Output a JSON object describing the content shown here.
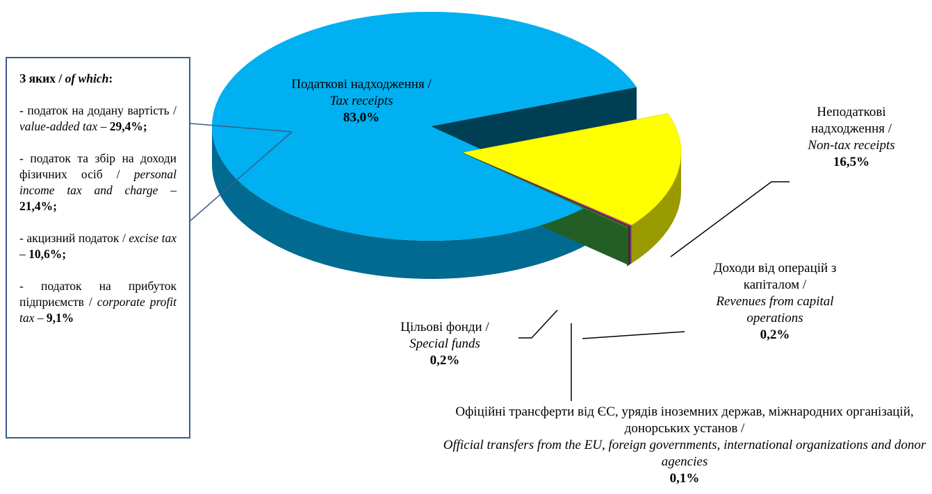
{
  "chart_data": {
    "type": "pie",
    "categories": [
      {
        "uk": "Податкові надходження /",
        "en": "Tax receipts"
      },
      {
        "uk": "Неподаткові надходження /",
        "en": "Non-tax receipts"
      },
      {
        "uk": "Доходи від операцій з капіталом /",
        "en": "Revenues from capital operations"
      },
      {
        "uk": "Офіційні трансферти від ЄС, урядів іноземних держав, міжнародних організацій, донорських установ /",
        "en": "Official transfers from the EU, foreign governments, international organizations and donor agencies"
      },
      {
        "uk": "Цільові фонди /",
        "en": "Special funds"
      }
    ],
    "values": [
      83.0,
      16.5,
      0.2,
      0.1,
      0.2
    ],
    "value_labels": [
      "83,0%",
      "16,5%",
      "0,2%",
      "0,1%",
      "0,2%"
    ],
    "colors": [
      "#00b0f0",
      "#ffff00",
      "#a040a0",
      "#8b0000",
      "#2e7d32"
    ],
    "box": {
      "title_uk": "З яких /",
      "title_en": "of which",
      "title_end": ":",
      "items": [
        {
          "uk": "- податок на додану вартість /",
          "en": "value-added tax",
          "dash": "–",
          "value": 29.4,
          "value_label": "29,4%",
          "end": ";"
        },
        {
          "uk": "- податок та збір на доходи фізичних осіб /",
          "en": "personal income tax and charge",
          "dash": "–",
          "value": 21.4,
          "value_label": "21,4%",
          "end": ";"
        },
        {
          "uk": "- акцизний податок /",
          "en": "excise tax",
          "dash": "–",
          "value": 10.6,
          "value_label": "10,6%",
          "end": ";"
        },
        {
          "uk": "- податок на прибуток підприємств /",
          "en": "corporate profit tax",
          "dash": "–",
          "value": 9.1,
          "value_label": "9,1%",
          "end": ""
        }
      ]
    }
  }
}
